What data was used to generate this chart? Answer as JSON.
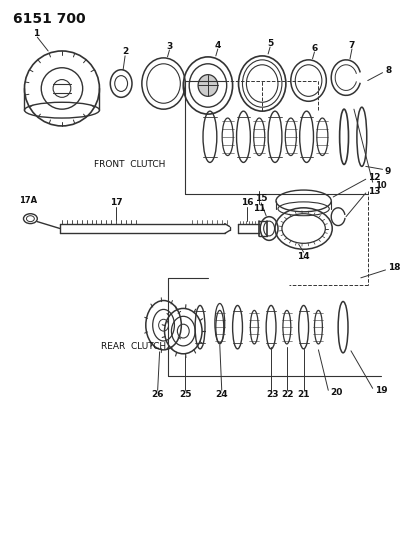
{
  "title": "6151 700",
  "bg_color": "#ffffff",
  "line_color": "#333333",
  "text_color": "#111111",
  "front_clutch_label": "FRONT  CLUTCH",
  "rear_clutch_label": "REAR  CLUTCH",
  "figsize": [
    4.08,
    5.33
  ],
  "dpi": 100
}
